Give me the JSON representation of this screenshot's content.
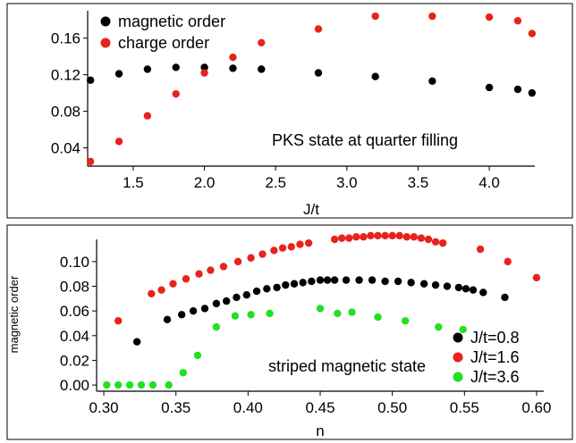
{
  "colors": {
    "black": "#000000",
    "red": "#e8231c",
    "green": "#22e022"
  },
  "chart_data": [
    {
      "type": "scatter",
      "title": "",
      "annotation": "PKS state at quarter filling",
      "xlabel": "J/t",
      "ylabel": "",
      "xlim": [
        1.18,
        4.32
      ],
      "ylim": [
        0.02,
        0.19
      ],
      "x_ticks": [
        1.5,
        2.0,
        2.5,
        3.0,
        3.5,
        4.0
      ],
      "x_tick_labels": [
        "1.5",
        "2.0",
        "2.5",
        "3.0",
        "3.5",
        "4.0"
      ],
      "y_ticks": [
        0.04,
        0.08,
        0.12,
        0.16
      ],
      "y_tick_labels": [
        "0.04",
        "0.08",
        "0.12",
        "0.16"
      ],
      "legend_position": "top-left",
      "series": [
        {
          "name": "magnetic order",
          "color": "#000000",
          "x": [
            1.2,
            1.4,
            1.6,
            1.8,
            2.0,
            2.2,
            2.4,
            2.8,
            3.2,
            3.6,
            4.0,
            4.2,
            4.3
          ],
          "y": [
            0.114,
            0.121,
            0.126,
            0.128,
            0.128,
            0.127,
            0.126,
            0.122,
            0.118,
            0.113,
            0.106,
            0.104,
            0.1
          ]
        },
        {
          "name": "charge order",
          "color": "#e8231c",
          "x": [
            1.2,
            1.4,
            1.6,
            1.8,
            2.0,
            2.2,
            2.4,
            2.8,
            3.2,
            3.6,
            4.0,
            4.2,
            4.3
          ],
          "y": [
            0.025,
            0.047,
            0.075,
            0.099,
            0.122,
            0.139,
            0.155,
            0.17,
            0.184,
            0.184,
            0.183,
            0.179,
            0.165
          ]
        }
      ]
    },
    {
      "type": "scatter",
      "title": "",
      "annotation": "striped magnetic state",
      "xlabel": "n",
      "ylabel": "magnetic order",
      "xlim": [
        0.295,
        0.605
      ],
      "ylim": [
        -0.005,
        0.118
      ],
      "x_ticks": [
        0.3,
        0.35,
        0.4,
        0.45,
        0.5,
        0.55,
        0.6
      ],
      "x_tick_labels": [
        "0.30",
        "0.35",
        "0.40",
        "0.45",
        "0.50",
        "0.55",
        "0.60"
      ],
      "y_ticks": [
        0.0,
        0.02,
        0.04,
        0.06,
        0.08,
        0.1
      ],
      "y_tick_labels": [
        "0.00",
        "0.02",
        "0.04",
        "0.06",
        "0.08",
        "0.10"
      ],
      "legend_position": "bottom-right",
      "series": [
        {
          "name": "J/t=0.8",
          "color": "#000000",
          "x": [
            0.323,
            0.344,
            0.354,
            0.362,
            0.37,
            0.378,
            0.385,
            0.392,
            0.399,
            0.406,
            0.413,
            0.42,
            0.426,
            0.432,
            0.438,
            0.444,
            0.45,
            0.455,
            0.46,
            0.468,
            0.477,
            0.486,
            0.495,
            0.504,
            0.513,
            0.522,
            0.53,
            0.538,
            0.546,
            0.551,
            0.556,
            0.563,
            0.578
          ],
          "y": [
            0.035,
            0.053,
            0.057,
            0.06,
            0.062,
            0.066,
            0.068,
            0.071,
            0.073,
            0.076,
            0.078,
            0.079,
            0.081,
            0.082,
            0.083,
            0.084,
            0.085,
            0.085,
            0.085,
            0.085,
            0.085,
            0.085,
            0.084,
            0.084,
            0.083,
            0.082,
            0.081,
            0.08,
            0.079,
            0.078,
            0.077,
            0.075,
            0.071
          ]
        },
        {
          "name": "J/t=1.6",
          "color": "#e8231c",
          "x": [
            0.31,
            0.333,
            0.34,
            0.348,
            0.357,
            0.366,
            0.374,
            0.383,
            0.393,
            0.402,
            0.41,
            0.418,
            0.424,
            0.43,
            0.436,
            0.442,
            0.46,
            0.465,
            0.47,
            0.475,
            0.48,
            0.485,
            0.49,
            0.495,
            0.5,
            0.505,
            0.51,
            0.515,
            0.52,
            0.525,
            0.53,
            0.535,
            0.561,
            0.58,
            0.6
          ],
          "y": [
            0.052,
            0.074,
            0.077,
            0.082,
            0.086,
            0.09,
            0.093,
            0.096,
            0.1,
            0.103,
            0.106,
            0.109,
            0.111,
            0.112,
            0.114,
            0.115,
            0.118,
            0.119,
            0.119,
            0.12,
            0.12,
            0.121,
            0.121,
            0.121,
            0.121,
            0.121,
            0.12,
            0.12,
            0.119,
            0.118,
            0.116,
            0.115,
            0.11,
            0.1,
            0.087
          ]
        },
        {
          "name": "J/t=3.6",
          "color": "#22e022",
          "x": [
            0.302,
            0.31,
            0.318,
            0.326,
            0.334,
            0.345,
            0.355,
            0.365,
            0.378,
            0.391,
            0.402,
            0.415,
            0.45,
            0.462,
            0.472,
            0.49,
            0.509,
            0.532,
            0.549
          ],
          "y": [
            0.0,
            0.0,
            0.0,
            0.0,
            0.0,
            0.0,
            0.01,
            0.024,
            0.047,
            0.056,
            0.057,
            0.058,
            0.062,
            0.058,
            0.059,
            0.055,
            0.052,
            0.047,
            0.045
          ]
        }
      ]
    }
  ]
}
